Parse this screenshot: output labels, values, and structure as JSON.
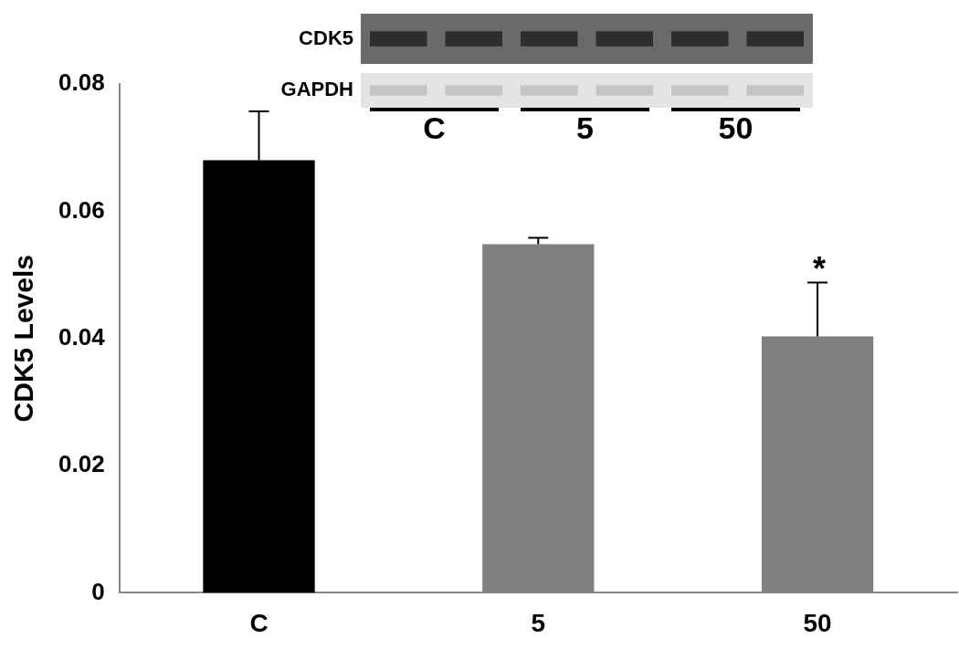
{
  "chart_data": {
    "type": "bar",
    "categories": [
      "C",
      "5",
      "50"
    ],
    "values": [
      0.068,
      0.0548,
      0.0403
    ],
    "errors": [
      0.0077,
      0.001,
      0.0085
    ],
    "colors": [
      "#000000",
      "#808080",
      "#808080"
    ],
    "y_label": "CDK5 Levels",
    "ylim": [
      0,
      0.08
    ],
    "yticks": [
      0,
      0.02,
      0.04,
      0.06,
      0.08
    ],
    "grid": false,
    "annotations": [
      {
        "category": "50",
        "text": "*"
      }
    ],
    "blot_labels": {
      "rows": [
        "CDK5",
        "GAPDH"
      ],
      "groups": [
        "C",
        "5",
        "50"
      ]
    }
  }
}
